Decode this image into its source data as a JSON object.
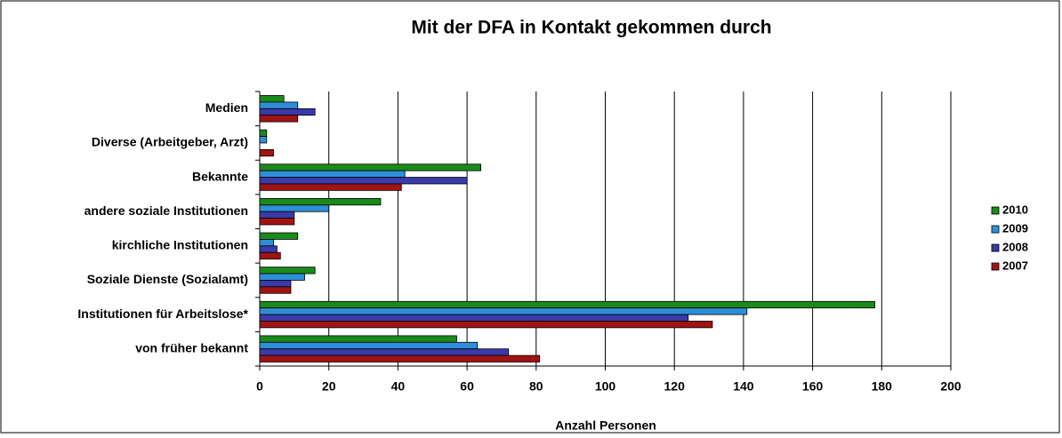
{
  "chart_data": {
    "type": "hbar",
    "title": "Mit der DFA in Kontakt gekommen durch",
    "xlabel": "Anzahl Personen",
    "categories": [
      "Medien",
      "Diverse (Arbeitgeber, Arzt)",
      "Bekannte",
      "andere soziale Institutionen",
      "kirchliche Institutionen",
      "Soziale Dienste (Sozialamt)",
      "Institutionen für Arbeitslose*",
      "von früher bekannt"
    ],
    "series": [
      {
        "name": "2010",
        "color": "#1a8a1a",
        "values": [
          7,
          2,
          64,
          35,
          11,
          16,
          178,
          57
        ]
      },
      {
        "name": "2009",
        "color": "#2e8fd8",
        "values": [
          11,
          2,
          42,
          20,
          4,
          13,
          141,
          63
        ]
      },
      {
        "name": "2008",
        "color": "#3a3aa8",
        "values": [
          16,
          0,
          60,
          10,
          5,
          9,
          124,
          72
        ]
      },
      {
        "name": "2007",
        "color": "#a01414",
        "values": [
          11,
          4,
          41,
          10,
          6,
          9,
          131,
          81
        ]
      }
    ],
    "xlim": [
      0,
      200
    ],
    "xticks": [
      0,
      20,
      40,
      60,
      80,
      100,
      120,
      140,
      160,
      180,
      200
    ],
    "grid": true,
    "legend": "right"
  }
}
